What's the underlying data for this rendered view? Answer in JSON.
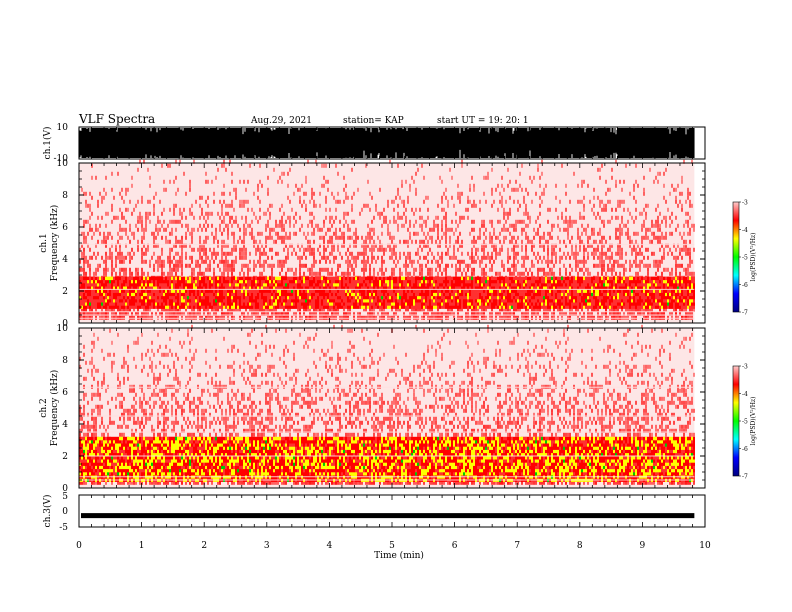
{
  "header": {
    "title": "VLF Spectra",
    "date": "Aug.29, 2021",
    "station": "station= KAP",
    "start_ut": "start  UT =    19: 20: 1"
  },
  "colors": {
    "waveform": "#000000",
    "spectrogram_low": "#ff0000",
    "spectrogram_mid": "#ffff00",
    "spectrogram_green": "#00cc00",
    "colorbar": [
      "#000080",
      "#0000ff",
      "#00ffff",
      "#00ff00",
      "#ffff00",
      "#ff0000",
      "#ffcccc"
    ]
  },
  "chart_data": [
    {
      "type": "line",
      "name": "ch1-waveform",
      "ylabel": "ch.1(V)",
      "ylim": [
        -10,
        10
      ],
      "yticks": [
        "10",
        "-10"
      ],
      "xlim": [
        0,
        10
      ],
      "note_visual": "dense saturated waveform"
    },
    {
      "type": "heatmap",
      "name": "ch1-spectrogram",
      "ylabel_line1": "ch.1",
      "ylabel_line2": "Frequency  (kHz)",
      "ylim": [
        0,
        10
      ],
      "yticks": [
        "0",
        "2",
        "4",
        "6",
        "8",
        "10"
      ],
      "xlim": [
        0,
        9.83
      ],
      "colorbar": {
        "label": "log(PSD)(V²/Hz)",
        "ticks": [
          "-3",
          "-4",
          "-5",
          "-6",
          "-7"
        ],
        "range": [
          -7,
          -3
        ]
      },
      "band_summary": {
        "strong_band_khz": [
          0.9,
          2.8
        ],
        "bright_lines_khz": [
          0.3,
          0.5,
          0.7,
          2.1,
          4.9
        ]
      }
    },
    {
      "type": "heatmap",
      "name": "ch2-spectrogram",
      "ylabel_line1": "ch.2",
      "ylabel_line2": "Frequency  (kHz)",
      "ylim": [
        0,
        10
      ],
      "yticks": [
        "0",
        "2",
        "4",
        "6",
        "8",
        "10"
      ],
      "xlim": [
        0,
        9.83
      ],
      "colorbar": {
        "label": "log(PSD)(V²/Hz)",
        "ticks": [
          "-3",
          "-4",
          "-5",
          "-6",
          "-7"
        ],
        "range": [
          -7,
          -3
        ]
      },
      "band_summary": {
        "strong_band_khz": [
          0.4,
          3.2
        ],
        "bright_lines_khz": [
          0.5,
          0.7,
          2.0,
          3.5,
          4.5,
          6.3
        ]
      }
    },
    {
      "type": "line",
      "name": "ch3-waveform",
      "ylabel": "ch.3(V)",
      "ylim": [
        -5,
        5
      ],
      "yticks": [
        "5",
        "0",
        "-5"
      ],
      "xlim": [
        0,
        10
      ],
      "level_v": -1.6
    }
  ],
  "xaxis": {
    "label": "Time  (min)",
    "ticks": [
      "0",
      "1",
      "2",
      "3",
      "4",
      "5",
      "6",
      "7",
      "8",
      "9",
      "10"
    ]
  }
}
